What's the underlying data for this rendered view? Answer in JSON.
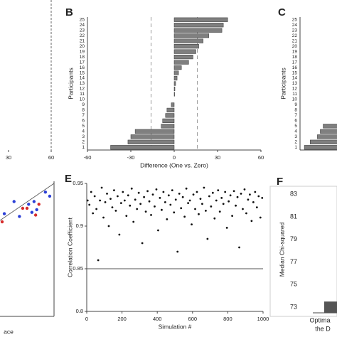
{
  "chart_data": [
    {
      "type": "fragment",
      "xlim": [
        30,
        60
      ],
      "xticks": [
        30,
        60
      ]
    },
    {
      "type": "hbar",
      "panel": "B",
      "x_label": "Difference (One vs. Zero)",
      "y_label": "Participants",
      "color": "#7f7f7f",
      "categories": [
        "1",
        "2",
        "3",
        "4",
        "5",
        "6",
        "7",
        "8",
        "9",
        "10",
        "11",
        "12",
        "13",
        "14",
        "15",
        "16",
        "17",
        "18",
        "19",
        "20",
        "21",
        "22",
        "23",
        "24",
        "25"
      ],
      "values": [
        -44,
        -32,
        -30,
        -27,
        -9,
        -8,
        -6,
        -5,
        -2,
        0,
        0.3,
        0.5,
        1,
        2,
        3,
        5,
        10,
        13,
        15,
        17,
        20,
        24,
        33,
        34,
        37
      ],
      "xlim": [
        -60,
        60
      ],
      "xticks": [
        -60,
        -30,
        0,
        30,
        60
      ],
      "reference_lines": [
        -16,
        16
      ]
    },
    {
      "type": "hbar",
      "panel": "C",
      "y_label": "Participants",
      "color": "#7f7f7f",
      "categories": [
        "1",
        "2",
        "3",
        "4",
        "5",
        "6",
        "7",
        "8",
        "9",
        "10",
        "11",
        "12",
        "13",
        "14",
        "15",
        "16",
        "17",
        "18",
        "19",
        "20",
        "21",
        "22",
        "23",
        "24",
        "25"
      ],
      "values": [
        -57,
        -53,
        -48,
        -46,
        -44,
        null,
        null,
        null,
        null,
        null,
        null,
        null,
        null,
        null,
        null,
        null,
        null,
        null,
        null,
        null,
        null,
        null,
        null,
        null,
        null
      ],
      "xlim": [
        -60,
        60
      ]
    },
    {
      "type": "scatter",
      "x_label": "ace",
      "xlim": [
        0,
        100
      ],
      "ylim": [
        0,
        100
      ],
      "series": [
        {
          "name": "blue",
          "color": "#2b3fd6",
          "x": [
            8,
            26,
            36,
            53,
            59,
            63,
            68,
            84,
            92
          ],
          "values": [
            76,
            85,
            74,
            83,
            77,
            85,
            79,
            92,
            89
          ]
        },
        {
          "name": "red",
          "color": "#d62b2b",
          "x": [
            4,
            42,
            50,
            66,
            72
          ],
          "values": [
            70,
            80,
            80,
            75,
            83
          ]
        }
      ]
    },
    {
      "type": "scatter",
      "panel": "E",
      "x_label": "Simulation #",
      "y_label": "Correlation Coefficient",
      "xlim": [
        0,
        1000
      ],
      "xticks": [
        0,
        200,
        400,
        600,
        800,
        1000
      ],
      "ylim": [
        0.8,
        0.95
      ],
      "yticks": [
        0.8,
        0.85,
        0.9,
        0.95
      ],
      "reference_lines": [
        0.85
      ],
      "series": [
        {
          "color": "#111111",
          "x": [
            5,
            15,
            25,
            35,
            45,
            55,
            65,
            75,
            85,
            95,
            105,
            115,
            125,
            135,
            145,
            155,
            165,
            175,
            185,
            195,
            205,
            215,
            225,
            235,
            245,
            255,
            265,
            275,
            285,
            295,
            305,
            315,
            325,
            335,
            345,
            355,
            365,
            375,
            385,
            395,
            405,
            415,
            425,
            435,
            445,
            455,
            465,
            475,
            485,
            495,
            505,
            515,
            525,
            535,
            545,
            555,
            565,
            575,
            585,
            595,
            605,
            615,
            625,
            635,
            645,
            655,
            665,
            675,
            685,
            695,
            705,
            715,
            725,
            735,
            745,
            755,
            765,
            775,
            785,
            795,
            805,
            815,
            825,
            835,
            845,
            855,
            865,
            875,
            885,
            895,
            905,
            915,
            925,
            935,
            945,
            955,
            965,
            975,
            985,
            995
          ],
          "values": [
            0.93,
            0.925,
            0.94,
            0.915,
            0.935,
            0.92,
            0.86,
            0.93,
            0.945,
            0.91,
            0.928,
            0.938,
            0.9,
            0.932,
            0.922,
            0.942,
            0.918,
            0.935,
            0.89,
            0.927,
            0.94,
            0.93,
            0.912,
            0.936,
            0.924,
            0.944,
            0.905,
            0.931,
            0.92,
            0.939,
            0.926,
            0.88,
            0.934,
            0.917,
            0.941,
            0.929,
            0.913,
            0.937,
            0.923,
            0.943,
            0.895,
            0.933,
            0.919,
            0.94,
            0.928,
            0.908,
            0.936,
            0.925,
            0.942,
            0.916,
            0.931,
            0.87,
            0.938,
            0.921,
            0.934,
            0.911,
            0.944,
            0.927,
            0.93,
            0.902,
            0.937,
            0.92,
            0.94,
            0.914,
            0.932,
            0.926,
            0.945,
            0.918,
            0.885,
            0.935,
            0.923,
            0.939,
            0.909,
            0.93,
            0.942,
            0.917,
            0.933,
            0.926,
            0.94,
            0.898,
            0.929,
            0.936,
            0.912,
            0.941,
            0.924,
            0.934,
            0.875,
            0.938,
            0.92,
            0.943,
            0.915,
            0.931,
            0.937,
            0.906,
            0.928,
            0.94,
            0.922,
            0.935,
            0.91,
            0.933
          ]
        }
      ]
    },
    {
      "type": "bar",
      "panel": "F",
      "y_label": "Median Chi-squared",
      "color": "#555555",
      "categories": [
        [
          "Optima",
          "the D"
        ]
      ],
      "values": [
        73.5
      ],
      "ylim": [
        72.5,
        83.7
      ],
      "yticks": [
        73,
        75,
        77,
        79,
        81,
        83
      ]
    }
  ]
}
